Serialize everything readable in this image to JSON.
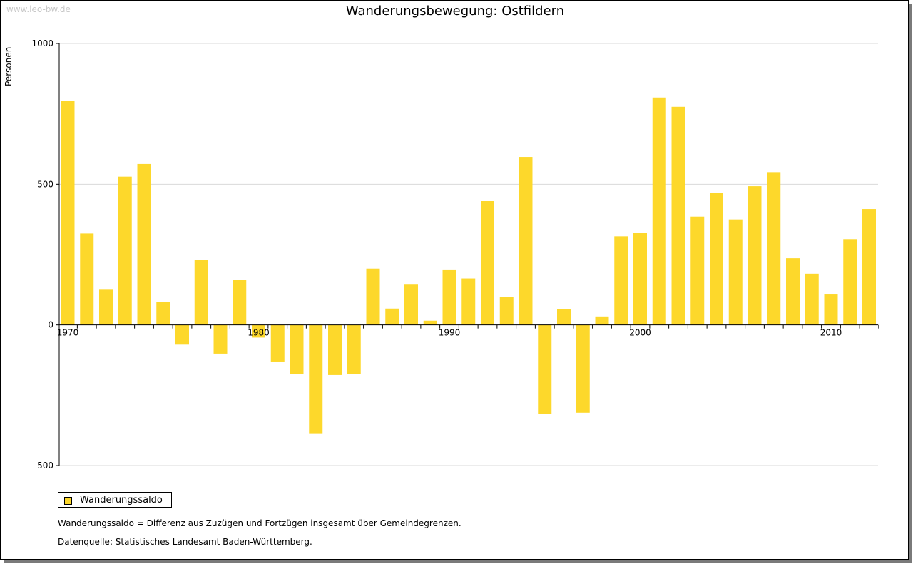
{
  "watermark": "www.leo-bw.de",
  "chart_data": {
    "type": "bar",
    "title": "Wanderungsbewegung: Ostfildern",
    "ylabel": "Personen",
    "xlabel": "",
    "ylim": [
      -500,
      1000
    ],
    "yticks": [
      -500,
      0,
      500,
      1000
    ],
    "xticks": [
      1970,
      1980,
      1990,
      2000,
      2010
    ],
    "grid": true,
    "legend_position": "bottom-left",
    "categories": [
      1970,
      1971,
      1972,
      1973,
      1974,
      1975,
      1976,
      1977,
      1978,
      1979,
      1980,
      1981,
      1982,
      1983,
      1984,
      1985,
      1986,
      1987,
      1988,
      1989,
      1990,
      1991,
      1992,
      1993,
      1994,
      1995,
      1996,
      1997,
      1998,
      1999,
      2000,
      2001,
      2002,
      2003,
      2004,
      2005,
      2006,
      2007,
      2008,
      2009,
      2010,
      2011,
      2012
    ],
    "series": [
      {
        "name": "Wanderungssaldo",
        "color": "#fdd82b",
        "values": [
          795,
          325,
          125,
          527,
          572,
          82,
          -70,
          232,
          -102,
          160,
          -45,
          -130,
          -175,
          -385,
          -178,
          -175,
          200,
          58,
          143,
          15,
          197,
          165,
          440,
          98,
          597,
          -315,
          55,
          -312,
          30,
          315,
          326,
          808,
          775,
          385,
          468,
          375,
          493,
          543,
          237,
          182,
          108,
          305,
          412
        ]
      }
    ]
  },
  "notes": {
    "definition": "Wanderungssaldo = Differenz aus Zuzügen und Fortzügen insgesamt über Gemeindegrenzen.",
    "source": "Datenquelle: Statistisches Landesamt Baden-Württemberg."
  }
}
